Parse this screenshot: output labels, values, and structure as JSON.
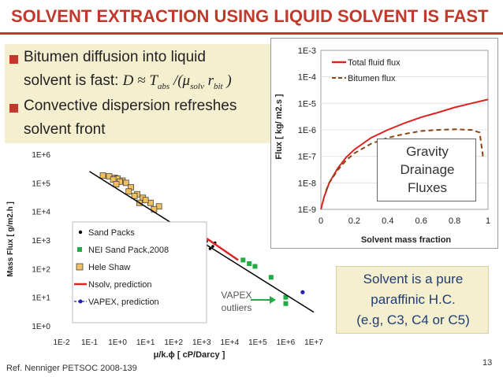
{
  "title": "SOLVENT EXTRACTION USING LIQUID SOLVENT IS FAST",
  "bullets": {
    "b1_line1": "Bitumen diffusion into liquid",
    "b1_line2": "solvent is fast:",
    "formula": {
      "D": "D",
      "approx": "≈",
      "T": "T",
      "T_sub": "abs",
      "slash": "/(μ",
      "mu_sub": "solv",
      "r": "r",
      "r_sub": "bit",
      "close": ")"
    },
    "b2_line1": "Convective dispersion refreshes",
    "b2_line2": "solvent front"
  },
  "left_chart": {
    "ylabel": "Mass Flux [ g/m2.h ]",
    "xlabel": "μ/k.ϕ [ cP/Darcy ]",
    "yticks": [
      "1E+6",
      "1E+5",
      "1E+4",
      "1E+3",
      "1E+2",
      "1E+1",
      "1E+0"
    ],
    "xticks": [
      "1E-2",
      "1E-1",
      "1E+0",
      "1E+1",
      "1E+2",
      "1E+3",
      "1E+4",
      "1E+5",
      "1E+6",
      "1E+7"
    ],
    "legend": [
      "Sand Packs",
      "NEI Sand Pack,2008",
      "Hele Shaw",
      "Nsolv, prediction",
      "VAPEX, prediction"
    ],
    "vapex_label_1": "VAPEX",
    "vapex_label_2": "outliers"
  },
  "chart_data": [
    {
      "type": "scatter",
      "xlabel": "μ/k.ϕ [ cP/Darcy ]",
      "ylabel": "Mass Flux [ g/m2.h ]",
      "xscale": "log",
      "yscale": "log",
      "xlim": [
        0.01,
        10000000
      ],
      "ylim": [
        1,
        1000000
      ],
      "series": [
        {
          "name": "Hele Shaw",
          "color": "#f0c060",
          "x": [
            0.3,
            0.5,
            0.8,
            1.0,
            1.5,
            2.0,
            0.7,
            1.2,
            3.0,
            5.0,
            8.0,
            15,
            30,
            2.5,
            4.0,
            6.0,
            10,
            20,
            50,
            0.9
          ],
          "y": [
            180000,
            170000,
            150000,
            140000,
            120000,
            100000,
            130000,
            110000,
            70000,
            40000,
            30000,
            20000,
            15000,
            50000,
            35000,
            20000,
            25000,
            12000,
            3000,
            90000
          ]
        },
        {
          "name": "Sand Packs",
          "color": "#000000",
          "x": [
            100,
            200,
            300,
            500,
            800,
            1000,
            1500,
            2000,
            3000,
            400,
            700,
            1200,
            2500
          ],
          "y": [
            2500,
            2000,
            1200,
            1000,
            800,
            600,
            900,
            500,
            800,
            1500,
            1100,
            700,
            600
          ]
        },
        {
          "name": "NEI Sand Pack,2008",
          "color": "#22aa44",
          "x": [
            30000,
            50000,
            80000,
            300000,
            1000000,
            1000000
          ],
          "y": [
            200,
            150,
            120,
            50,
            10,
            6
          ]
        },
        {
          "name": "Nsolv, prediction",
          "color": "#dd2222",
          "x": [
            1000,
            20000
          ],
          "y": [
            1500,
            200
          ]
        },
        {
          "name": "VAPEX, prediction",
          "color": "#2222bb",
          "x": [
            4000000
          ],
          "y": [
            15
          ]
        },
        {
          "name": "",
          "color": "#000000",
          "x": [
            0.1,
            10000000
          ],
          "y": [
            250000,
            3
          ]
        }
      ]
    },
    {
      "type": "line",
      "xlabel": "Solvent mass fraction",
      "ylabel": "Flux [ kg/ m2.s ]",
      "xlim": [
        0,
        1
      ],
      "yscale": "log",
      "ylim": [
        1e-09,
        0.001
      ],
      "xticks": [
        "0",
        "0.2",
        "0.4",
        "0.6",
        "0.8",
        "1"
      ],
      "yticks": [
        "1E-3",
        "1E-4",
        "1E-5",
        "1E-6",
        "1E-7",
        "1E-8",
        "1E-9"
      ],
      "legend_position": "top-right",
      "series": [
        {
          "name": "Total fluid flux",
          "color": "#dd2222",
          "x": [
            0,
            0.02,
            0.05,
            0.1,
            0.15,
            0.2,
            0.3,
            0.4,
            0.5,
            0.6,
            0.7,
            0.8,
            0.9,
            1.0
          ],
          "y": [
            1e-09,
            3e-09,
            1e-08,
            3.5e-08,
            9e-08,
            1.8e-07,
            5e-07,
            1e-06,
            1.8e-06,
            3e-06,
            4.5e-06,
            7e-06,
            1e-05,
            1.4e-05
          ]
        },
        {
          "name": "Bitumen flux",
          "color": "#8b4513",
          "x": [
            0.03,
            0.05,
            0.1,
            0.15,
            0.2,
            0.3,
            0.4,
            0.5,
            0.6,
            0.7,
            0.8,
            0.9,
            0.95,
            0.97
          ],
          "y": [
            5e-09,
            1e-08,
            3e-08,
            7e-08,
            1.3e-07,
            3e-07,
            5e-07,
            7e-07,
            9e-07,
            1e-06,
            1.05e-06,
            1e-06,
            8e-07,
            1e-07
          ]
        }
      ]
    }
  ],
  "right_chart": {
    "ylabel": "Flux [ kg/ m2.s ]",
    "xlabel": "Solvent mass fraction",
    "legend": [
      "Total fluid flux",
      "Bitumen flux"
    ]
  },
  "gravity_box": [
    "Gravity",
    "Drainage",
    "Fluxes"
  ],
  "solvent_box": [
    "Solvent is a pure",
    "paraffinic H.C.",
    "(e.g, C3, C4 or C5)"
  ],
  "reference": "Ref. Nenniger PETSOC 2008-139",
  "page_number": "13",
  "colors": {
    "accent": "#c0392b",
    "box": "#f4efcf",
    "nsolv": "#dd2222",
    "vapex": "#2222bb",
    "nei": "#22aa44"
  }
}
